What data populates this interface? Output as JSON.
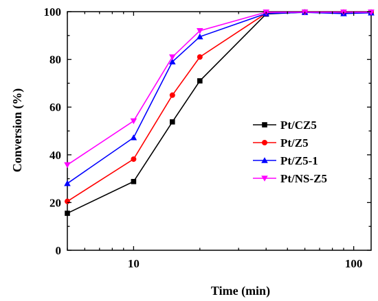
{
  "chart_data": {
    "type": "line",
    "xlabel": "Time (min)",
    "ylabel": "Conversion (%)",
    "x_scale": "log",
    "xlim": [
      5,
      120
    ],
    "ylim": [
      0,
      100
    ],
    "x_ticks": [
      10,
      100
    ],
    "y_ticks": [
      0,
      20,
      40,
      60,
      80,
      100
    ],
    "legend_position": "right-center",
    "grid": false,
    "series": [
      {
        "name": "Pt/CZ5",
        "color": "#000000",
        "marker": "square",
        "x": [
          5,
          10,
          15,
          20,
          40,
          60,
          90,
          120
        ],
        "y": [
          15.5,
          28.8,
          53.8,
          71,
          99,
          99.8,
          99.5,
          99.5
        ]
      },
      {
        "name": "Pt/Z5",
        "color": "#ff0000",
        "marker": "circle",
        "x": [
          5,
          10,
          15,
          20,
          40,
          60,
          90,
          120
        ],
        "y": [
          20.5,
          38.2,
          65,
          81,
          99.3,
          99.8,
          99.8,
          99.8
        ]
      },
      {
        "name": "Pt/Z5-1",
        "color": "#0000ff",
        "marker": "triangle-up",
        "x": [
          5,
          10,
          15,
          20,
          40,
          60,
          90,
          120
        ],
        "y": [
          28,
          47.2,
          79,
          89.5,
          99.2,
          99.7,
          99.2,
          99.5
        ]
      },
      {
        "name": "Pt/NS-Z5",
        "color": "#ff00ff",
        "marker": "triangle-down",
        "x": [
          5,
          10,
          15,
          20,
          40,
          60,
          90,
          120
        ],
        "y": [
          35.8,
          54.2,
          81,
          92,
          99.8,
          99.8,
          99.8,
          99.8
        ]
      }
    ]
  }
}
